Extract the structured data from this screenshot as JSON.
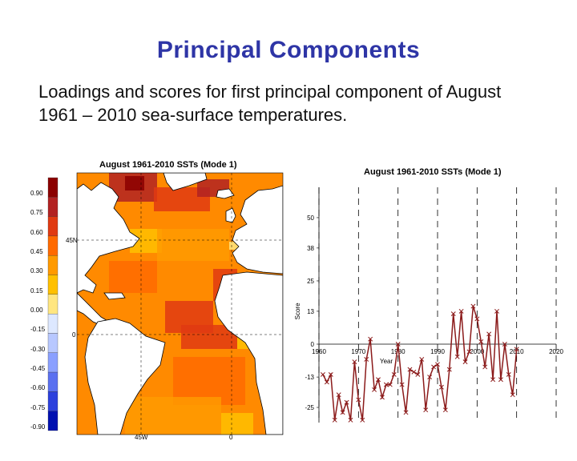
{
  "slide": {
    "title": "Principal Components",
    "body_line1": "Loadings and scores for first principal component of August",
    "body_line2": "1961 – 2010 sea-surface temperatures."
  },
  "map": {
    "title": "August 1961-2010 SSTs (Mode 1)",
    "legend_labels": [
      "0.90",
      "0.75",
      "0.60",
      "0.45",
      "0.30",
      "0.15",
      "0.00",
      "-0.15",
      "-0.30",
      "-0.45",
      "-0.60",
      "-0.75",
      "-0.90"
    ],
    "legend_colors": [
      "#8b0000",
      "#b22222",
      "#e03a12",
      "#ff6a00",
      "#ff9a00",
      "#ffc000",
      "#ffe680",
      "#dde8ff",
      "#b8c8ff",
      "#8aa0ff",
      "#5a70f0",
      "#2c40dd",
      "#0010b0"
    ],
    "lat_labels": [
      "45N",
      "0"
    ],
    "lon_labels": [
      "45W",
      "0"
    ]
  },
  "chart_data": {
    "type": "line",
    "title": "August 1961-2010 SSTs (Mode 1)",
    "xlabel": "Year",
    "ylabel": "Score",
    "xlim": [
      1960,
      2020
    ],
    "ylim": [
      -31,
      62
    ],
    "x_ticks": [
      1960,
      1970,
      1980,
      1990,
      2000,
      2010,
      2020
    ],
    "y_ticks": [
      50,
      38,
      25,
      13,
      0,
      -13,
      -25
    ],
    "grid": "vertical dashed",
    "series_color": "#8b1a1a",
    "series": [
      {
        "x": [
          1961,
          1962,
          1963,
          1964,
          1965,
          1966,
          1967,
          1968,
          1969,
          1970,
          1971,
          1972,
          1973,
          1974,
          1975,
          1976,
          1977,
          1978,
          1979,
          1980,
          1981,
          1982,
          1983,
          1984,
          1985,
          1986,
          1987,
          1988,
          1989,
          1990,
          1991,
          1992,
          1993,
          1994,
          1995,
          1996,
          1997,
          1998,
          1999,
          2000,
          2001,
          2002,
          2003,
          2004,
          2005,
          2006,
          2007,
          2008,
          2009,
          2010
        ],
        "values": [
          -12,
          -15,
          -12,
          -30,
          -20,
          -27,
          -23,
          -30,
          -7,
          -22,
          -30,
          -6,
          2,
          -18,
          -14,
          -21,
          -16,
          -16,
          -12,
          0,
          -16,
          -27,
          -10,
          -11,
          -12,
          -6,
          -26,
          -13,
          -9,
          -8,
          -17,
          -26,
          -10,
          12,
          -5,
          13,
          -7,
          -3,
          15,
          10,
          1,
          -9,
          4,
          -14,
          13,
          -14,
          0,
          -12,
          -20,
          -2
        ]
      }
    ]
  }
}
